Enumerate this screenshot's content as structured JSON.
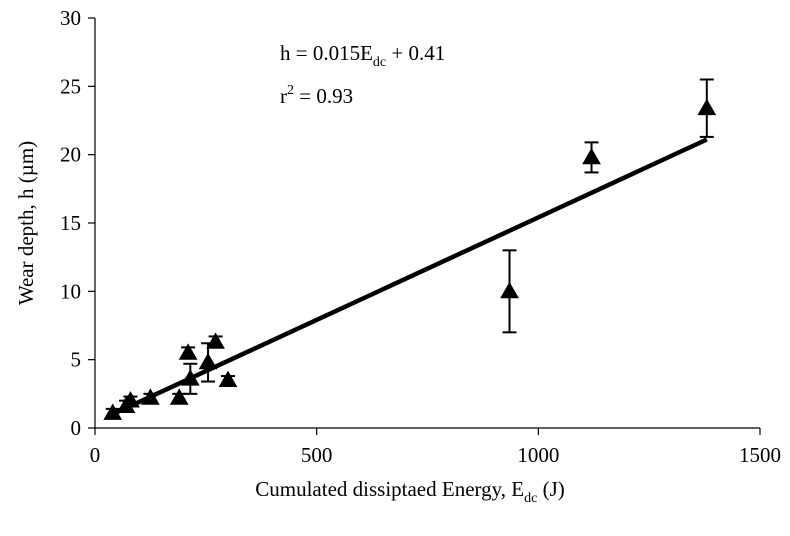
{
  "chart_data": {
    "type": "scatter",
    "title": "",
    "xlabel": {
      "main": "Cumulated dissiptaed Energy, E",
      "sub": "dc",
      "unit": " (J)"
    },
    "ylabel": "Wear depth, h (µm)",
    "xlim": [
      0,
      1500
    ],
    "ylim": [
      0,
      30
    ],
    "xticks": [
      0,
      500,
      1000,
      1500
    ],
    "yticks": [
      0,
      5,
      10,
      15,
      20,
      25,
      30
    ],
    "grid": false,
    "legend": "none",
    "marker": "triangle",
    "marker_color": "#000000",
    "points": [
      {
        "x": 40,
        "y": 1.1,
        "err": 0.3
      },
      {
        "x": 70,
        "y": 1.6,
        "err": 0.4
      },
      {
        "x": 80,
        "y": 2.0,
        "err": 0.3
      },
      {
        "x": 125,
        "y": 2.2,
        "err": 0.3
      },
      {
        "x": 190,
        "y": 2.2,
        "err": 0.3
      },
      {
        "x": 210,
        "y": 5.5,
        "err": 0.4
      },
      {
        "x": 215,
        "y": 3.6,
        "err": 1.1
      },
      {
        "x": 255,
        "y": 4.8,
        "err": 1.4
      },
      {
        "x": 272,
        "y": 6.3,
        "err": 0.4
      },
      {
        "x": 300,
        "y": 3.5,
        "err": 0.3
      },
      {
        "x": 935,
        "y": 10.0,
        "err": 3.0
      },
      {
        "x": 1120,
        "y": 19.8,
        "err": 1.1
      },
      {
        "x": 1380,
        "y": 23.4,
        "err": 2.1
      }
    ],
    "fit": {
      "slope": 0.015,
      "intercept": 0.41,
      "x_range": [
        40,
        1380
      ]
    },
    "annotations": {
      "equation": {
        "main": "h = 0.015E",
        "sub": "dc",
        "rest": " + 0.41"
      },
      "r2": {
        "main": "r",
        "sup": "2",
        "rest": " = 0.93"
      }
    }
  }
}
